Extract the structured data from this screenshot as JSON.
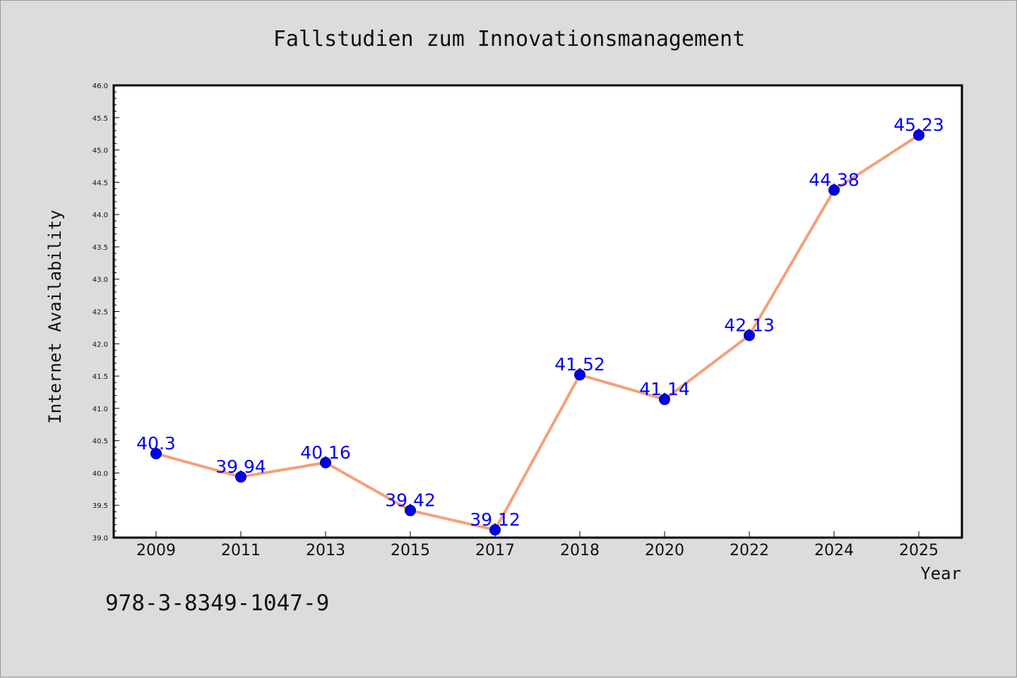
{
  "chart_data": {
    "type": "line",
    "title": "Fallstudien zum Innovationsmanagement",
    "xlabel": "Year",
    "ylabel": "Internet Availability",
    "categories": [
      "2009",
      "2011",
      "2013",
      "2015",
      "2017",
      "2018",
      "2020",
      "2022",
      "2024",
      "2025"
    ],
    "series": [
      {
        "values": [
          40.3,
          39.94,
          40.16,
          39.42,
          39.12,
          41.52,
          41.14,
          42.13,
          44.38,
          45.23
        ],
        "labels": [
          "40.3",
          "39.94",
          "40.16",
          "39.42",
          "39.12",
          "41.52",
          "41.14",
          "42.13",
          "44.38",
          "45.23"
        ]
      }
    ],
    "ylim": [
      39.0,
      46.0
    ],
    "yticks": [
      "39.0",
      "39.5",
      "40.0",
      "40.5",
      "41.0",
      "41.5",
      "42.0",
      "42.5",
      "43.0",
      "43.5",
      "44.0",
      "44.5",
      "45.0",
      "45.5",
      "46.0"
    ],
    "grid": false,
    "line_color": "#f4a07a",
    "marker_color": "#0000ee",
    "label_color": "#0000ee",
    "background_color": "#dcdcdc",
    "plot_background": "#ffffff"
  },
  "footer": {
    "isbn": "978-3-8349-1047-9"
  }
}
